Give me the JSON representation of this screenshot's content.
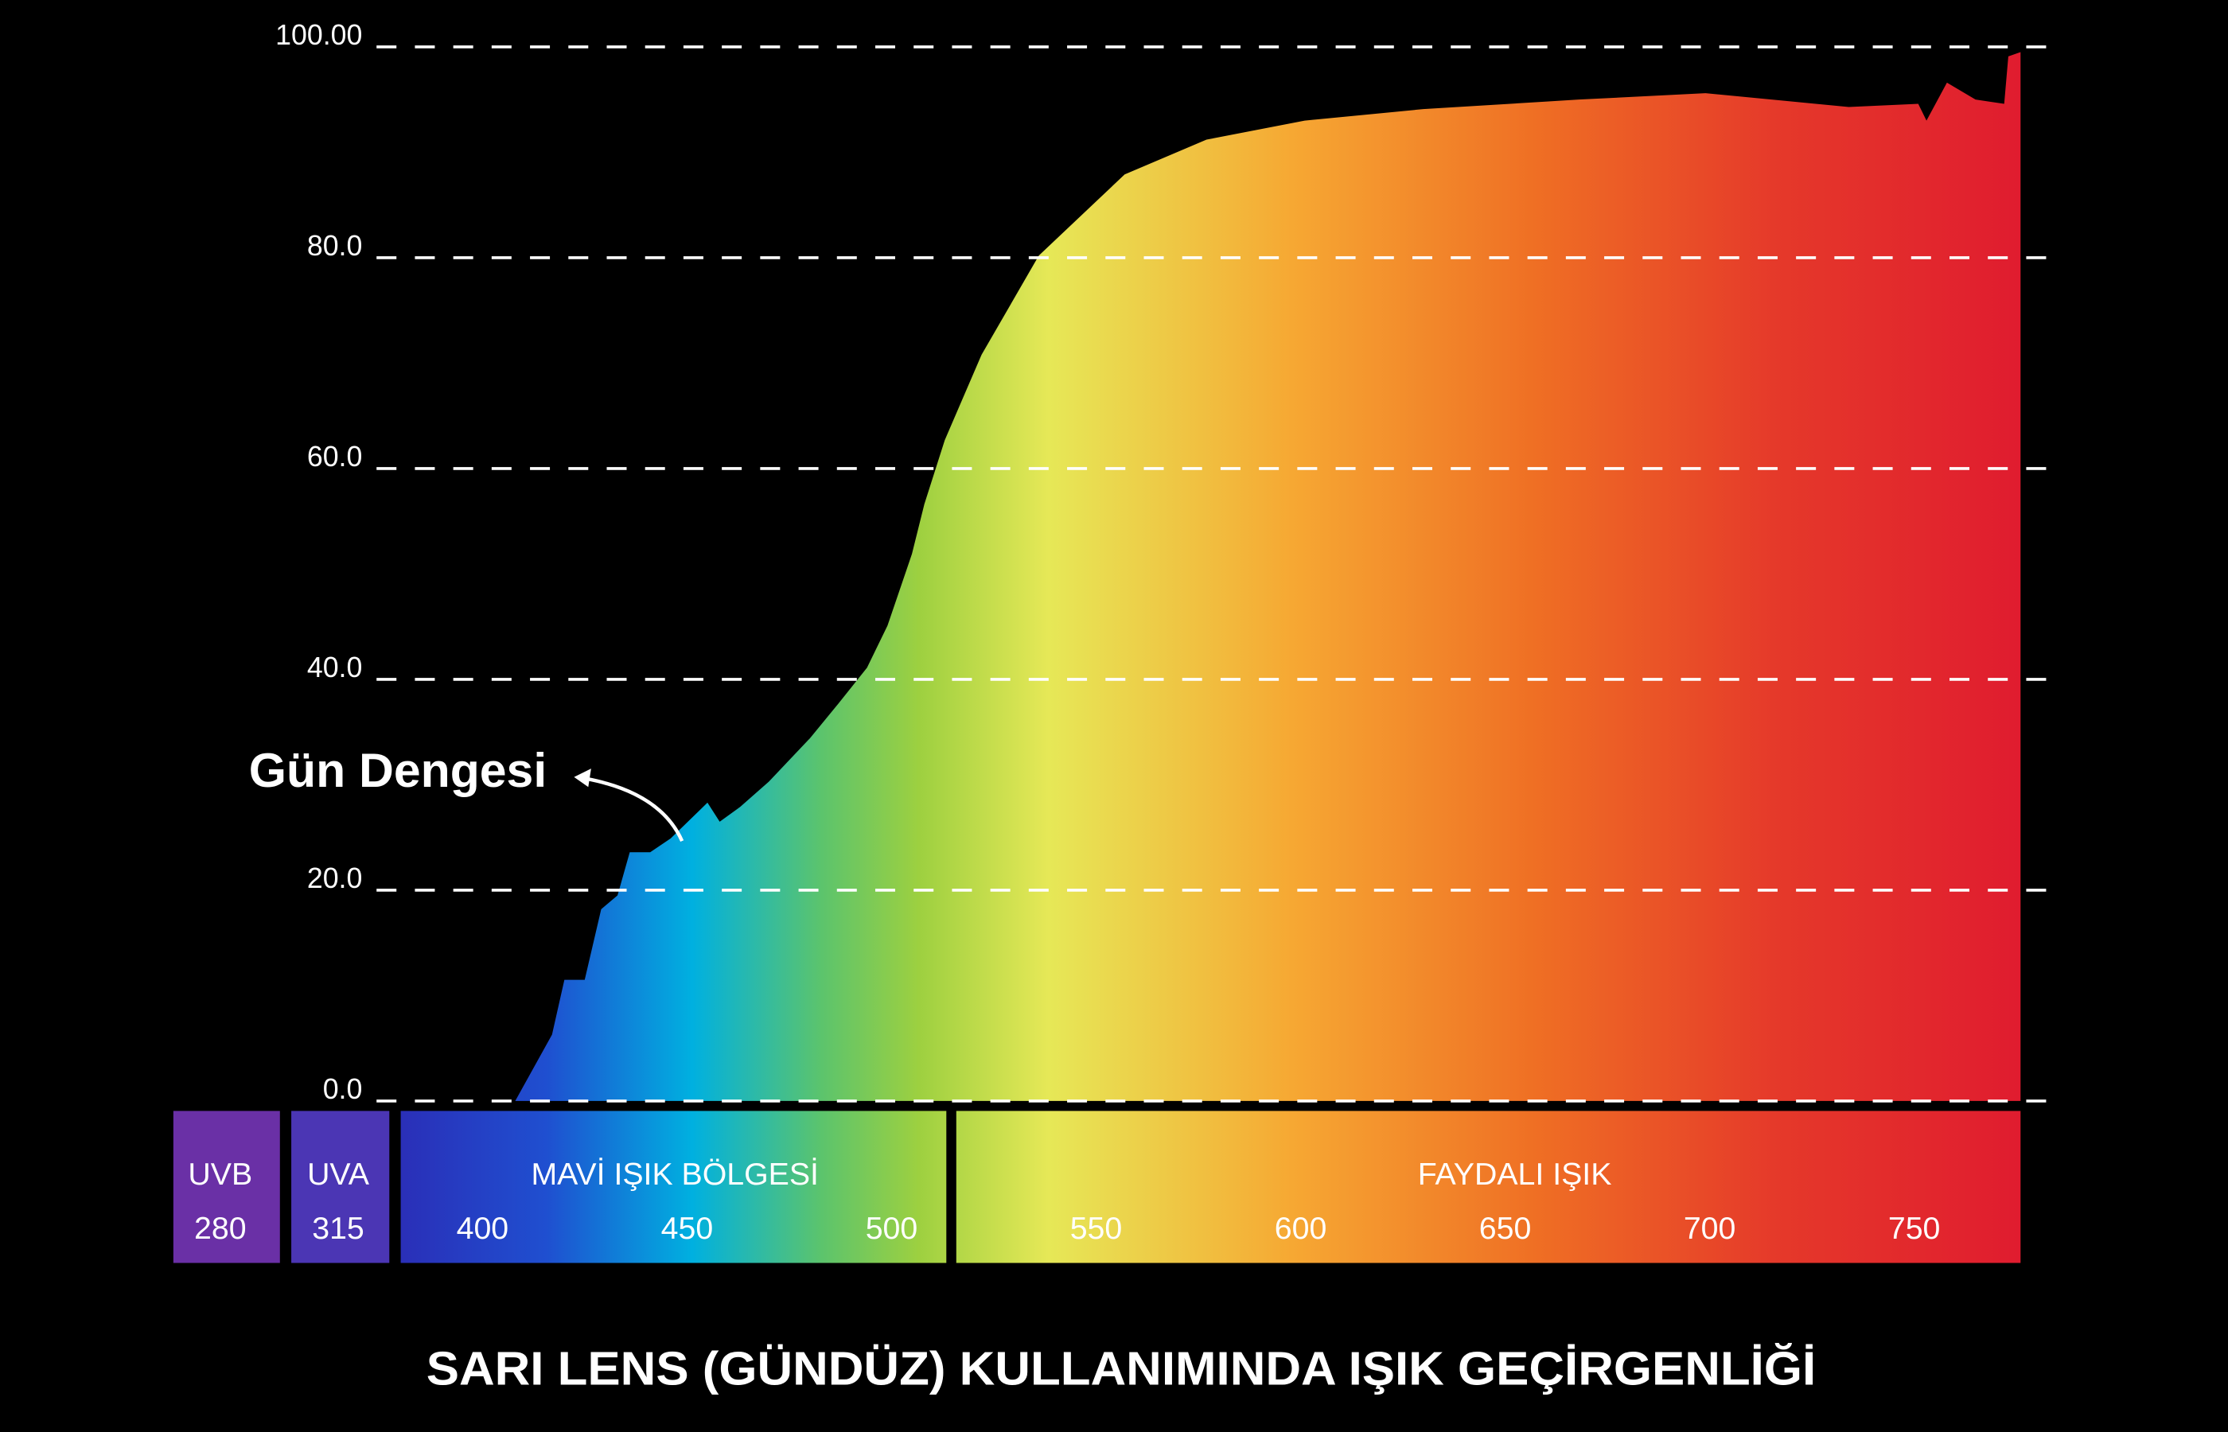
{
  "chart_data": {
    "type": "area",
    "title": "SARI LENS (GÜNDÜZ) KULLANIMINDA IŞIK GEÇİRGENLİĞİ",
    "annotation": "Gün Dengesi",
    "x": [
      408,
      417,
      420,
      425,
      429,
      433,
      436,
      441,
      446,
      455,
      458,
      463,
      470,
      480,
      487,
      494,
      499,
      505,
      508,
      513,
      522,
      536,
      557,
      577,
      601,
      630,
      668,
      699,
      734,
      751,
      753,
      758,
      765,
      772,
      773,
      776
    ],
    "values": [
      0,
      6.3,
      11.5,
      11.5,
      18.2,
      19.5,
      23.6,
      23.6,
      24.9,
      28.3,
      26.5,
      27.9,
      30.3,
      34.4,
      37.7,
      41.1,
      45.1,
      51.9,
      56.6,
      62.7,
      70.8,
      80.2,
      87.9,
      91.2,
      93.0,
      94.1,
      95.0,
      95.6,
      94.3,
      94.6,
      93.0,
      96.6,
      95.0,
      94.6,
      99.1,
      99.5
    ],
    "xlim": [
      380,
      776
    ],
    "ylim": [
      0,
      100
    ],
    "xticks": [
      400,
      450,
      500,
      550,
      600,
      650,
      700,
      750
    ],
    "yticks": [
      {
        "value": 0,
        "label": "0.0"
      },
      {
        "value": 20,
        "label": "20.0"
      },
      {
        "value": 40,
        "label": "40.0"
      },
      {
        "value": 60,
        "label": "60.0"
      },
      {
        "value": 80,
        "label": "80.0"
      },
      {
        "value": 100,
        "label": "100.00"
      }
    ],
    "uv_bands": [
      {
        "name": "UVB",
        "wavelength": 280
      },
      {
        "name": "UVA",
        "wavelength": 315
      }
    ],
    "regions": [
      {
        "name": "MAVİ IŞIK BÖLGESİ"
      },
      {
        "name": "FAYDALI IŞIK"
      }
    ],
    "grid": true
  }
}
